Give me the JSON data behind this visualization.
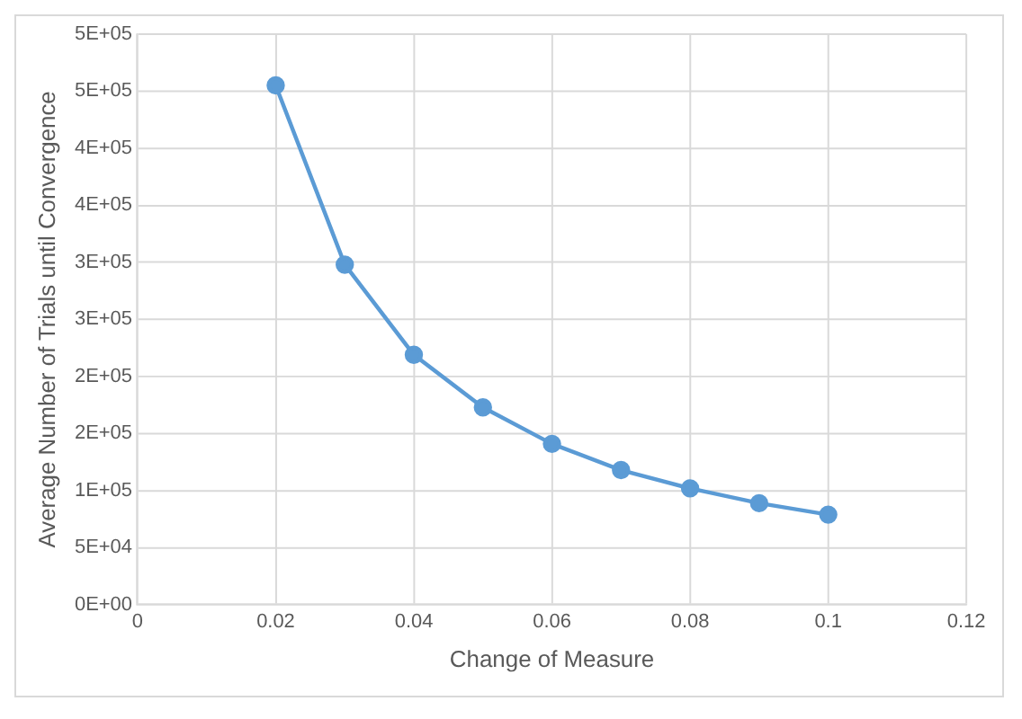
{
  "chart_data": {
    "type": "line",
    "xlabel": "Change of Measure",
    "ylabel": "Average Number of Trials until Convergence",
    "x": [
      0.02,
      0.03,
      0.04,
      0.05,
      0.06,
      0.07,
      0.08,
      0.09,
      0.1
    ],
    "series": [
      {
        "color": "#5b9bd5",
        "values": [
          455000,
          298000,
          219000,
          173000,
          141000,
          118000,
          102000,
          89000,
          79000
        ]
      }
    ],
    "xlim": [
      0,
      0.12
    ],
    "xticks": [
      0,
      0.02,
      0.04,
      0.06,
      0.08,
      0.1,
      0.12
    ],
    "ylim": [
      0,
      500000
    ],
    "yticks": [
      {
        "value": 0,
        "label": "0E+00"
      },
      {
        "value": 50000,
        "label": "5E+04"
      },
      {
        "value": 100000,
        "label": "1E+05"
      },
      {
        "value": 150000,
        "label": "2E+05"
      },
      {
        "value": 200000,
        "label": "2E+05"
      },
      {
        "value": 250000,
        "label": "3E+05"
      },
      {
        "value": 300000,
        "label": "3E+05"
      },
      {
        "value": 350000,
        "label": "4E+05"
      },
      {
        "value": 400000,
        "label": "4E+05"
      },
      {
        "value": 450000,
        "label": "5E+05"
      },
      {
        "value": 500000,
        "label": "5E+05"
      }
    ],
    "grid": true,
    "marker": "circle",
    "line_style": "solid",
    "legend": false
  }
}
